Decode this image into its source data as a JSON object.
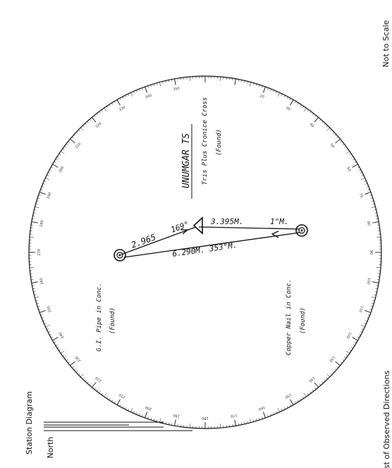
{
  "header": {
    "scale_note": "Not to Scale",
    "diagram_title": "Station Diagram",
    "footer_caption": "List of Observed Directions"
  },
  "north_label": "North",
  "compass": {
    "tick_labels": [
      "20",
      "30",
      "40",
      "50",
      "60",
      "70",
      "80",
      "90",
      "100",
      "110",
      "120",
      "130",
      "140",
      "150",
      "160",
      "170",
      "180",
      "190",
      "200",
      "210",
      "220",
      "230",
      "240",
      "250",
      "260",
      "270",
      "280",
      "290",
      "300",
      "310",
      "320",
      "330",
      "340",
      "350"
    ]
  },
  "stations": {
    "main": {
      "name": "UNUMGAR TS",
      "line1": "Tris Plus Cronice Cross",
      "line2": "(Found)"
    },
    "west": {
      "line1": "G.I. Pipe in Conc.",
      "line2": "(Found)"
    },
    "east": {
      "line1": "Copper Nail in Conc.",
      "line2": "(Found)"
    }
  },
  "measurements": {
    "west_distance": "2.965",
    "west_bearing": "169°",
    "east_distance": "3.395M.",
    "east_bearing": "1°M.",
    "long_line": "6.290M. 353°M."
  }
}
